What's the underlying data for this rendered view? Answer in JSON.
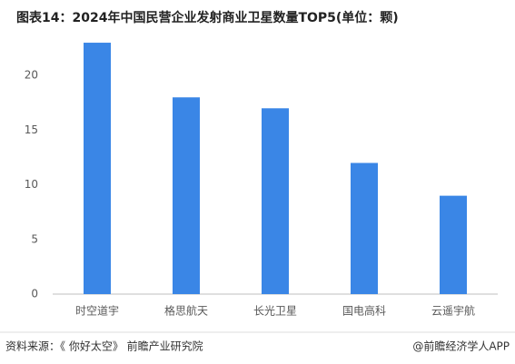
{
  "chart_data": {
    "type": "bar",
    "title": "图表14：2024年中国民营企业发射商业卫星数量TOP5(单位：颗)",
    "categories": [
      "时空道宇",
      "格思航天",
      "长光卫星",
      "国电高科",
      "云遥宇航"
    ],
    "values": [
      23,
      18,
      17,
      12,
      9
    ],
    "color": "#3a86e6",
    "ylim": [
      0,
      24
    ],
    "yticks": [
      0,
      5,
      10,
      15,
      20
    ],
    "grid": false,
    "source": "资料来源：《 你好太空》 前瞻产业研究院",
    "credit": "@前瞻经济学人APP"
  }
}
